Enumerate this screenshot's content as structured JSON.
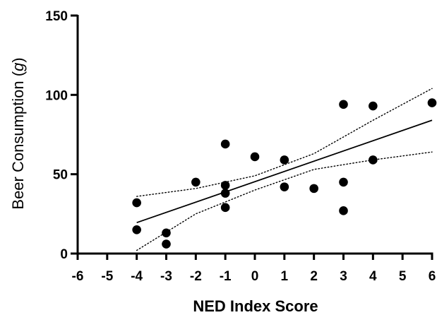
{
  "chart_data": {
    "type": "scatter",
    "xlabel": "NED Index Score",
    "ylabel_prefix": "Beer Consumption (",
    "ylabel_unit": "g",
    "ylabel_suffix": ")",
    "xlim": [
      -6,
      6
    ],
    "ylim": [
      0,
      150
    ],
    "xticks": [
      -6,
      -5,
      -4,
      -3,
      -2,
      -1,
      0,
      1,
      2,
      3,
      4,
      5,
      6
    ],
    "yticks": [
      0,
      50,
      100,
      150
    ],
    "grid": false,
    "points": [
      {
        "x": -4,
        "y": 32
      },
      {
        "x": -4,
        "y": 15
      },
      {
        "x": -3,
        "y": 13
      },
      {
        "x": -3,
        "y": 6
      },
      {
        "x": -2,
        "y": 45
      },
      {
        "x": -1,
        "y": 69
      },
      {
        "x": -1,
        "y": 43
      },
      {
        "x": -1,
        "y": 38
      },
      {
        "x": -1,
        "y": 29
      },
      {
        "x": 0,
        "y": 61
      },
      {
        "x": 1,
        "y": 59
      },
      {
        "x": 1,
        "y": 42
      },
      {
        "x": 2,
        "y": 41
      },
      {
        "x": 3,
        "y": 94
      },
      {
        "x": 3,
        "y": 45
      },
      {
        "x": 3,
        "y": 27
      },
      {
        "x": 4,
        "y": 93
      },
      {
        "x": 4,
        "y": 59
      },
      {
        "x": 6,
        "y": 95
      }
    ],
    "regression_line": {
      "x": [
        -4,
        6
      ],
      "y": [
        19.5,
        84
      ]
    },
    "confidence_band": {
      "upper": [
        {
          "x": -4,
          "y": 36
        },
        {
          "x": -2,
          "y": 41
        },
        {
          "x": 0,
          "y": 49
        },
        {
          "x": 2,
          "y": 63
        },
        {
          "x": 4,
          "y": 84
        },
        {
          "x": 6,
          "y": 104
        }
      ],
      "lower": [
        {
          "x": -4,
          "y": 2
        },
        {
          "x": -2,
          "y": 25
        },
        {
          "x": 0,
          "y": 40
        },
        {
          "x": 2,
          "y": 53
        },
        {
          "x": 4,
          "y": 59
        },
        {
          "x": 6,
          "y": 64
        }
      ]
    }
  }
}
